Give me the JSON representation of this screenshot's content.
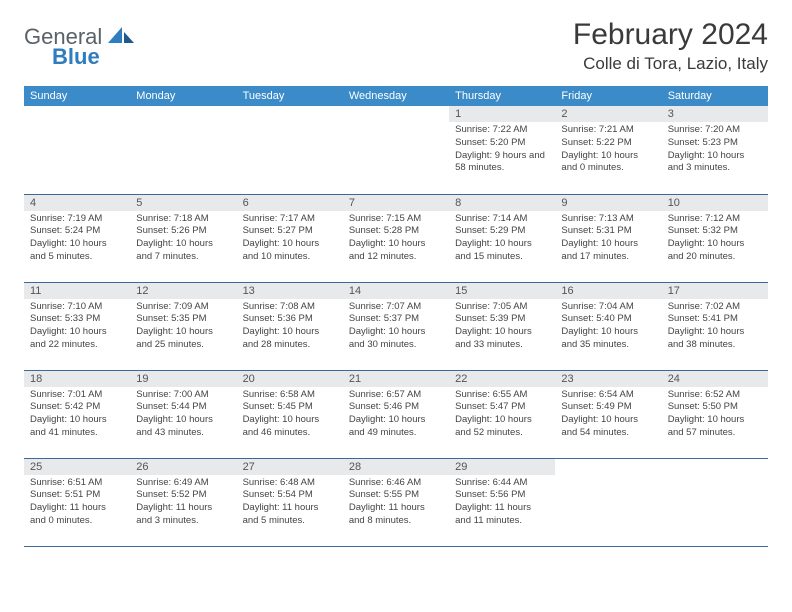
{
  "logo": {
    "general": "General",
    "blue": "Blue"
  },
  "title": "February 2024",
  "location": "Colle di Tora, Lazio, Italy",
  "colors": {
    "header_bg": "#3b8bc8",
    "header_text": "#ffffff",
    "daynum_bg": "#e8e9ea",
    "row_divider": "#3b6a9a",
    "text": "#444444",
    "logo_gray": "#5a6268",
    "logo_blue": "#2d7dc0"
  },
  "day_headers": [
    "Sunday",
    "Monday",
    "Tuesday",
    "Wednesday",
    "Thursday",
    "Friday",
    "Saturday"
  ],
  "weeks": [
    [
      {
        "n": "",
        "sr": "",
        "ss": "",
        "dl": ""
      },
      {
        "n": "",
        "sr": "",
        "ss": "",
        "dl": ""
      },
      {
        "n": "",
        "sr": "",
        "ss": "",
        "dl": ""
      },
      {
        "n": "",
        "sr": "",
        "ss": "",
        "dl": ""
      },
      {
        "n": "1",
        "sr": "Sunrise: 7:22 AM",
        "ss": "Sunset: 5:20 PM",
        "dl": "Daylight: 9 hours and 58 minutes."
      },
      {
        "n": "2",
        "sr": "Sunrise: 7:21 AM",
        "ss": "Sunset: 5:22 PM",
        "dl": "Daylight: 10 hours and 0 minutes."
      },
      {
        "n": "3",
        "sr": "Sunrise: 7:20 AM",
        "ss": "Sunset: 5:23 PM",
        "dl": "Daylight: 10 hours and 3 minutes."
      }
    ],
    [
      {
        "n": "4",
        "sr": "Sunrise: 7:19 AM",
        "ss": "Sunset: 5:24 PM",
        "dl": "Daylight: 10 hours and 5 minutes."
      },
      {
        "n": "5",
        "sr": "Sunrise: 7:18 AM",
        "ss": "Sunset: 5:26 PM",
        "dl": "Daylight: 10 hours and 7 minutes."
      },
      {
        "n": "6",
        "sr": "Sunrise: 7:17 AM",
        "ss": "Sunset: 5:27 PM",
        "dl": "Daylight: 10 hours and 10 minutes."
      },
      {
        "n": "7",
        "sr": "Sunrise: 7:15 AM",
        "ss": "Sunset: 5:28 PM",
        "dl": "Daylight: 10 hours and 12 minutes."
      },
      {
        "n": "8",
        "sr": "Sunrise: 7:14 AM",
        "ss": "Sunset: 5:29 PM",
        "dl": "Daylight: 10 hours and 15 minutes."
      },
      {
        "n": "9",
        "sr": "Sunrise: 7:13 AM",
        "ss": "Sunset: 5:31 PM",
        "dl": "Daylight: 10 hours and 17 minutes."
      },
      {
        "n": "10",
        "sr": "Sunrise: 7:12 AM",
        "ss": "Sunset: 5:32 PM",
        "dl": "Daylight: 10 hours and 20 minutes."
      }
    ],
    [
      {
        "n": "11",
        "sr": "Sunrise: 7:10 AM",
        "ss": "Sunset: 5:33 PM",
        "dl": "Daylight: 10 hours and 22 minutes."
      },
      {
        "n": "12",
        "sr": "Sunrise: 7:09 AM",
        "ss": "Sunset: 5:35 PM",
        "dl": "Daylight: 10 hours and 25 minutes."
      },
      {
        "n": "13",
        "sr": "Sunrise: 7:08 AM",
        "ss": "Sunset: 5:36 PM",
        "dl": "Daylight: 10 hours and 28 minutes."
      },
      {
        "n": "14",
        "sr": "Sunrise: 7:07 AM",
        "ss": "Sunset: 5:37 PM",
        "dl": "Daylight: 10 hours and 30 minutes."
      },
      {
        "n": "15",
        "sr": "Sunrise: 7:05 AM",
        "ss": "Sunset: 5:39 PM",
        "dl": "Daylight: 10 hours and 33 minutes."
      },
      {
        "n": "16",
        "sr": "Sunrise: 7:04 AM",
        "ss": "Sunset: 5:40 PM",
        "dl": "Daylight: 10 hours and 35 minutes."
      },
      {
        "n": "17",
        "sr": "Sunrise: 7:02 AM",
        "ss": "Sunset: 5:41 PM",
        "dl": "Daylight: 10 hours and 38 minutes."
      }
    ],
    [
      {
        "n": "18",
        "sr": "Sunrise: 7:01 AM",
        "ss": "Sunset: 5:42 PM",
        "dl": "Daylight: 10 hours and 41 minutes."
      },
      {
        "n": "19",
        "sr": "Sunrise: 7:00 AM",
        "ss": "Sunset: 5:44 PM",
        "dl": "Daylight: 10 hours and 43 minutes."
      },
      {
        "n": "20",
        "sr": "Sunrise: 6:58 AM",
        "ss": "Sunset: 5:45 PM",
        "dl": "Daylight: 10 hours and 46 minutes."
      },
      {
        "n": "21",
        "sr": "Sunrise: 6:57 AM",
        "ss": "Sunset: 5:46 PM",
        "dl": "Daylight: 10 hours and 49 minutes."
      },
      {
        "n": "22",
        "sr": "Sunrise: 6:55 AM",
        "ss": "Sunset: 5:47 PM",
        "dl": "Daylight: 10 hours and 52 minutes."
      },
      {
        "n": "23",
        "sr": "Sunrise: 6:54 AM",
        "ss": "Sunset: 5:49 PM",
        "dl": "Daylight: 10 hours and 54 minutes."
      },
      {
        "n": "24",
        "sr": "Sunrise: 6:52 AM",
        "ss": "Sunset: 5:50 PM",
        "dl": "Daylight: 10 hours and 57 minutes."
      }
    ],
    [
      {
        "n": "25",
        "sr": "Sunrise: 6:51 AM",
        "ss": "Sunset: 5:51 PM",
        "dl": "Daylight: 11 hours and 0 minutes."
      },
      {
        "n": "26",
        "sr": "Sunrise: 6:49 AM",
        "ss": "Sunset: 5:52 PM",
        "dl": "Daylight: 11 hours and 3 minutes."
      },
      {
        "n": "27",
        "sr": "Sunrise: 6:48 AM",
        "ss": "Sunset: 5:54 PM",
        "dl": "Daylight: 11 hours and 5 minutes."
      },
      {
        "n": "28",
        "sr": "Sunrise: 6:46 AM",
        "ss": "Sunset: 5:55 PM",
        "dl": "Daylight: 11 hours and 8 minutes."
      },
      {
        "n": "29",
        "sr": "Sunrise: 6:44 AM",
        "ss": "Sunset: 5:56 PM",
        "dl": "Daylight: 11 hours and 11 minutes."
      },
      {
        "n": "",
        "sr": "",
        "ss": "",
        "dl": ""
      },
      {
        "n": "",
        "sr": "",
        "ss": "",
        "dl": ""
      }
    ]
  ]
}
